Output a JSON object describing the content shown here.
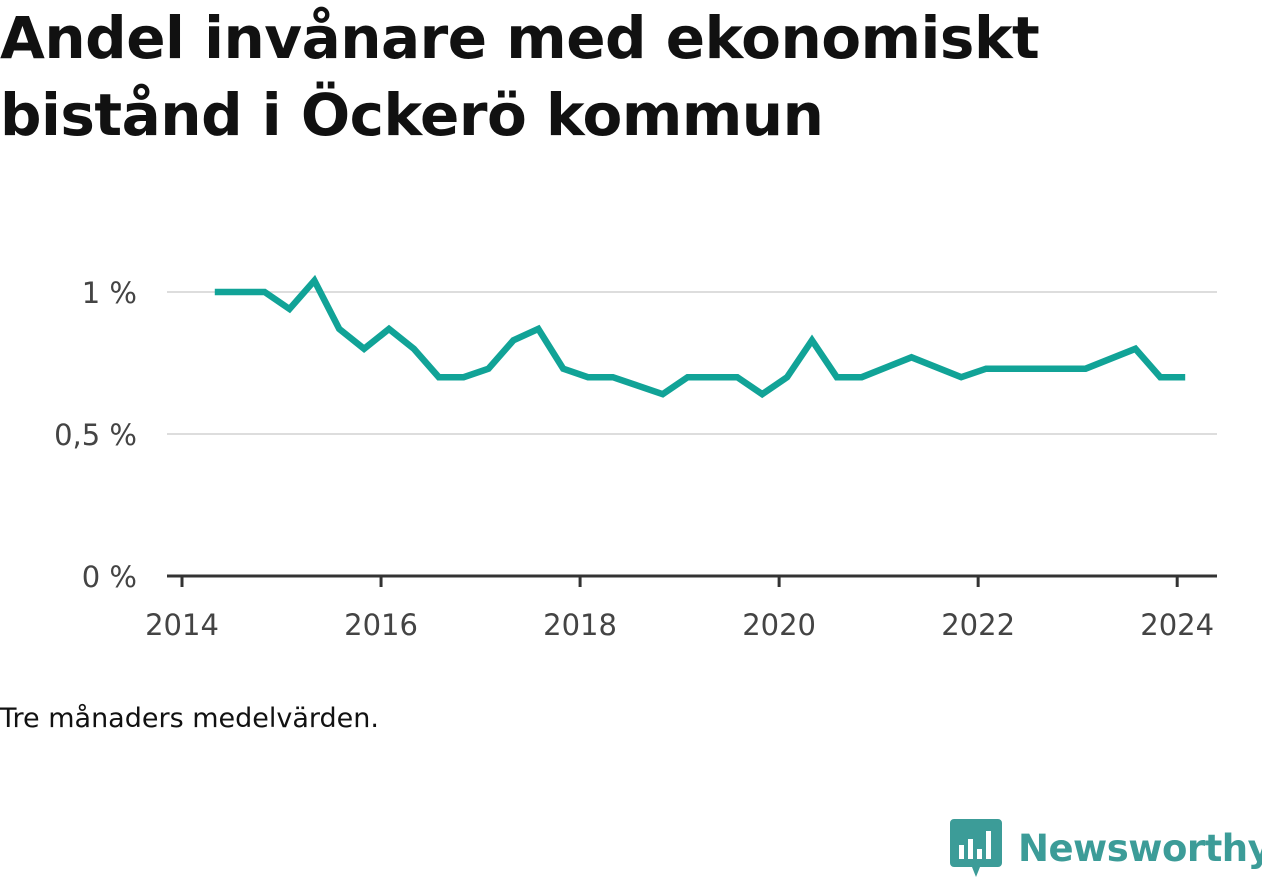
{
  "title": "Andel invånare med ekonomiskt bistånd i Öckerö kommun",
  "note": "Tre månaders medelvärden.",
  "brand": {
    "name": "Newsworthy",
    "icon": "newsworthy-logo-icon",
    "color": "#3c9c98"
  },
  "chart_data": {
    "type": "line",
    "title": "Andel invånare med ekonomiskt bistånd i Öckerö kommun",
    "xlabel": "",
    "ylabel": "",
    "xlim": [
      2014,
      2024.4
    ],
    "ylim": [
      0,
      1.0
    ],
    "grid": true,
    "legend": "none",
    "x_ticks": [
      {
        "value": 2014,
        "label": "2014"
      },
      {
        "value": 2016,
        "label": "2016"
      },
      {
        "value": 2018,
        "label": "2018"
      },
      {
        "value": 2020,
        "label": "2020"
      },
      {
        "value": 2022,
        "label": "2022"
      },
      {
        "value": 2024,
        "label": "2024"
      }
    ],
    "y_ticks": [
      {
        "value": 0,
        "label": "0 %"
      },
      {
        "value": 0.5,
        "label": "0,5 %"
      },
      {
        "value": 1,
        "label": "1 %"
      }
    ],
    "series": [
      {
        "color": "#11a397",
        "points": [
          {
            "x": 2014.33,
            "y": 1.0
          },
          {
            "x": 2014.58,
            "y": 1.0
          },
          {
            "x": 2014.83,
            "y": 1.0
          },
          {
            "x": 2015.08,
            "y": 0.94
          },
          {
            "x": 2015.33,
            "y": 1.04
          },
          {
            "x": 2015.58,
            "y": 0.87
          },
          {
            "x": 2015.83,
            "y": 0.8
          },
          {
            "x": 2016.08,
            "y": 0.87
          },
          {
            "x": 2016.33,
            "y": 0.8
          },
          {
            "x": 2016.58,
            "y": 0.7
          },
          {
            "x": 2016.83,
            "y": 0.7
          },
          {
            "x": 2017.08,
            "y": 0.73
          },
          {
            "x": 2017.33,
            "y": 0.83
          },
          {
            "x": 2017.58,
            "y": 0.87
          },
          {
            "x": 2017.83,
            "y": 0.73
          },
          {
            "x": 2018.08,
            "y": 0.7
          },
          {
            "x": 2018.33,
            "y": 0.7
          },
          {
            "x": 2018.58,
            "y": 0.67
          },
          {
            "x": 2018.83,
            "y": 0.64
          },
          {
            "x": 2019.08,
            "y": 0.7
          },
          {
            "x": 2019.33,
            "y": 0.7
          },
          {
            "x": 2019.58,
            "y": 0.7
          },
          {
            "x": 2019.83,
            "y": 0.64
          },
          {
            "x": 2020.08,
            "y": 0.7
          },
          {
            "x": 2020.33,
            "y": 0.83
          },
          {
            "x": 2020.58,
            "y": 0.7
          },
          {
            "x": 2020.83,
            "y": 0.7
          },
          {
            "x": 2021.33,
            "y": 0.77
          },
          {
            "x": 2021.83,
            "y": 0.7
          },
          {
            "x": 2022.08,
            "y": 0.73
          },
          {
            "x": 2022.58,
            "y": 0.73
          },
          {
            "x": 2023.08,
            "y": 0.73
          },
          {
            "x": 2023.58,
            "y": 0.8
          },
          {
            "x": 2023.83,
            "y": 0.7
          },
          {
            "x": 2024.08,
            "y": 0.7
          }
        ]
      }
    ]
  }
}
